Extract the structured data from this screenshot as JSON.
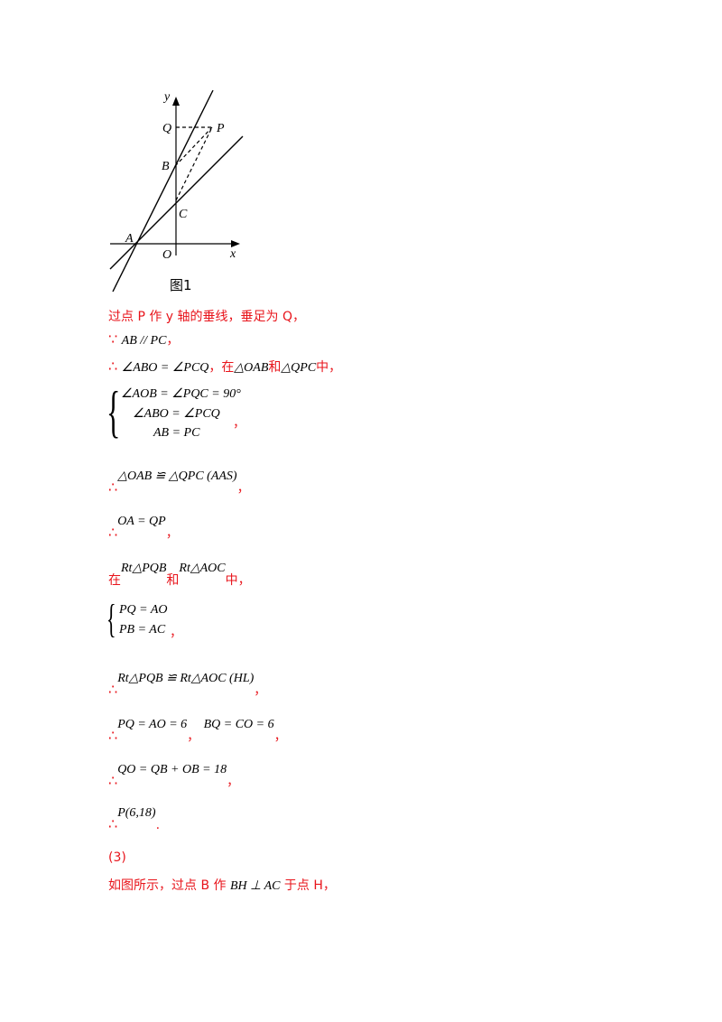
{
  "figure": {
    "labels": {
      "y": "y",
      "x": "x",
      "Q": "Q",
      "P": "P",
      "B": "B",
      "C": "C",
      "A": "A",
      "O": "O"
    },
    "caption": "图1"
  },
  "lines": {
    "l1_text": "过点 P 作 y 轴的垂线，垂足为 Q，",
    "l2_math": "AB // PC",
    "l2_tail": "，",
    "l3_math": "∠ABO = ∠PCQ",
    "l3_mid": "，在",
    "l3_tri1": "△OAB",
    "l3_and": "和",
    "l3_tri2": "△QPC",
    "l3_tail": "中，",
    "sys1": [
      "∠AOB = ∠PQC = 90°",
      "∠ABO = ∠PCQ",
      "AB = PC"
    ],
    "sys1_tail": "，",
    "l5_math": "△OAB ≌ △QPC (AAS)",
    "l5_tail": "，",
    "l6_math": "OA = QP",
    "l6_tail": "，",
    "l7_pre": "在",
    "l7_tri1": "Rt△PQB",
    "l7_and": "和",
    "l7_tri2": "Rt△AOC",
    "l7_tail": "中，",
    "sys2": [
      "PQ = AO",
      "PB = AC"
    ],
    "sys2_tail": "，",
    "l9_math": "Rt△PQB ≌ Rt△AOC (HL)",
    "l9_tail": "，",
    "l10_math1": "PQ = AO = 6",
    "l10_mid": "，",
    "l10_math2": "BQ = CO = 6",
    "l10_tail": "，",
    "l11_math": "QO = QB + OB = 18",
    "l11_tail": "，",
    "l12_math": "P(6,18)",
    "l12_tail": ".",
    "l13": "(3)",
    "l14_pre": "如图所示，过点 B 作",
    "l14_math": "BH ⊥ AC",
    "l14_tail": "于点 H，"
  },
  "symbols": {
    "because": "∵",
    "therefore": "∴"
  }
}
